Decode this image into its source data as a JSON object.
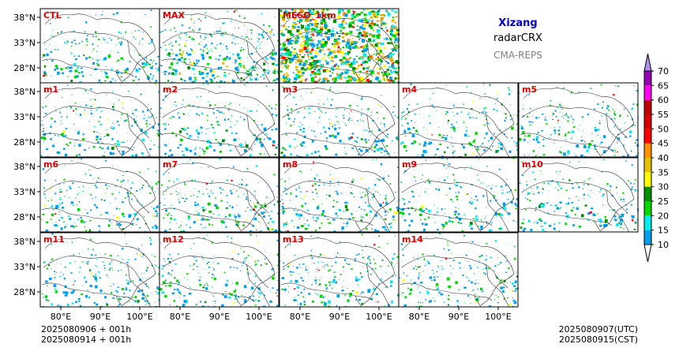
{
  "header": {
    "region": "Xizang",
    "variable": "radarCRX",
    "system": "CMA-REPS",
    "region_color": "#0000cc",
    "system_color": "#808080"
  },
  "panel_title_color": "#e00000",
  "panels": [
    {
      "label": "CTL"
    },
    {
      "label": "MAX"
    },
    {
      "label": "MESO_1km"
    },
    {
      "label": "m1"
    },
    {
      "label": "m2"
    },
    {
      "label": "m3"
    },
    {
      "label": "m4"
    },
    {
      "label": "m5"
    },
    {
      "label": "m6"
    },
    {
      "label": "m7"
    },
    {
      "label": "m8"
    },
    {
      "label": "m9"
    },
    {
      "label": "m10"
    },
    {
      "label": "m11"
    },
    {
      "label": "m12"
    },
    {
      "label": "m13"
    },
    {
      "label": "m14"
    }
  ],
  "axes": {
    "lat_ticks": [
      "38°N",
      "33°N",
      "28°N"
    ],
    "lon_ticks": [
      "80°E",
      "90°E",
      "100°E"
    ]
  },
  "colorbar": {
    "levels": [
      10,
      15,
      20,
      25,
      30,
      35,
      40,
      45,
      50,
      55,
      60,
      65,
      70
    ],
    "colors": [
      "#00a0f0",
      "#00ecec",
      "#00d800",
      "#009000",
      "#ffff00",
      "#e7c000",
      "#ff9000",
      "#ff0000",
      "#d60000",
      "#c00000",
      "#ff00f0",
      "#9600b4",
      "#ad90f0"
    ]
  },
  "footer": {
    "init_utc": "2025080906  +  001h",
    "init_cst": "2025080914  +  001h",
    "valid_utc": "2025080907(UTC)",
    "valid_cst": "2025080915(CST)"
  }
}
